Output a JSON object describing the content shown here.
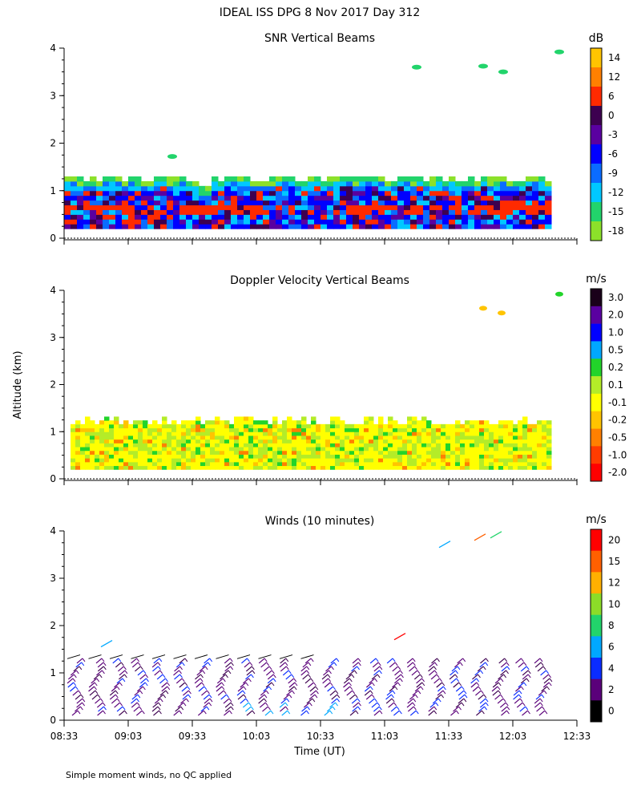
{
  "figure": {
    "title": "IDEAL ISS DPG    8 Nov 2017 Day 312",
    "ylabel": "Altitude (km)",
    "xlabel": "Time (UT)",
    "footnote": "Simple moment winds, no QC applied"
  },
  "chart_data": [
    {
      "type": "heatmap",
      "title": "SNR Vertical Beams",
      "x_range": [
        "08:33",
        "12:33"
      ],
      "ylim": [
        0,
        4
      ],
      "y_ticks": [
        "0",
        "1",
        "2",
        "3",
        "4"
      ],
      "colorbar": {
        "unit": "dB",
        "labels": [
          "14",
          "12",
          "6",
          "0",
          "-3",
          "-6",
          "-9",
          "-12",
          "-15",
          "-18"
        ],
        "colors": [
          "#ffc400",
          "#ff8000",
          "#ff2a00",
          "#3d0050",
          "#5a00a0",
          "#0000ff",
          "#0a6cff",
          "#00c8ff",
          "#22d46b",
          "#8ce12a"
        ]
      }
    },
    {
      "type": "heatmap",
      "title": "Doppler Velocity Vertical Beams",
      "x_range": [
        "08:33",
        "12:33"
      ],
      "ylim": [
        0,
        4
      ],
      "y_ticks": [
        "0",
        "1",
        "2",
        "3",
        "4"
      ],
      "colorbar": {
        "unit": "m/s",
        "labels": [
          "3.0",
          "2.0",
          "1.0",
          "0.5",
          "0.2",
          "0.1",
          "-0.1",
          "-0.2",
          "-0.5",
          "-1.0",
          "-2.0"
        ],
        "colors": [
          "#1a001a",
          "#5a00a0",
          "#0000ff",
          "#00a8ff",
          "#22d42a",
          "#b4ec28",
          "#ffff00",
          "#ffc400",
          "#ff8000",
          "#ff3c00",
          "#ff0000"
        ]
      }
    },
    {
      "type": "scatter",
      "title": "Winds (10 minutes)",
      "x_range": [
        "08:33",
        "12:33"
      ],
      "x_ticks": [
        "08:33",
        "09:03",
        "09:33",
        "10:03",
        "10:33",
        "11:03",
        "11:33",
        "12:03",
        "12:33"
      ],
      "ylim": [
        0,
        4
      ],
      "y_ticks": [
        "0",
        "1",
        "2",
        "3",
        "4"
      ],
      "colorbar": {
        "unit": "m/s",
        "labels": [
          "20",
          "15",
          "12",
          "10",
          "8",
          "6",
          "4",
          "2",
          "0"
        ],
        "colors": [
          "#ff0000",
          "#ff6000",
          "#ffb000",
          "#8cdc28",
          "#22d46b",
          "#00a8ff",
          "#0a2cff",
          "#5a007a",
          "#000000"
        ]
      }
    }
  ]
}
